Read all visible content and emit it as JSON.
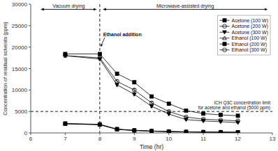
{
  "chart_data": {
    "type": "line",
    "title": "",
    "xlabel": "Time (hr)",
    "ylabel": "Concentration of residual solvents (ppm)",
    "xlim": [
      6,
      13
    ],
    "ylim": [
      0,
      30000
    ],
    "xticks": [
      6,
      7,
      8,
      9,
      10,
      11,
      12,
      13
    ],
    "yticks": [
      0,
      5000,
      10000,
      15000,
      20000,
      25000,
      30000
    ],
    "grid": false,
    "legend": "upper right",
    "color": "#000000",
    "x": [
      7,
      8,
      8.5,
      9,
      9.5,
      10,
      10.5,
      11,
      11.5,
      12
    ],
    "series": [
      {
        "name": "Acetone (100 W)",
        "marker": "square",
        "values": [
          18400,
          18400,
          13800,
          11800,
          8500,
          6800,
          5200,
          4500,
          4200,
          4000
        ],
        "yerr": [
          300,
          300,
          350,
          350,
          300,
          250,
          200,
          180,
          180,
          180
        ]
      },
      {
        "name": "Acetone (200 W)",
        "marker": "circle-open",
        "values": [
          18000,
          17500,
          12000,
          10000,
          7000,
          5000,
          3700,
          3200,
          3000,
          2800
        ],
        "yerr": [
          300,
          300,
          350,
          300,
          280,
          230,
          180,
          150,
          150,
          150
        ]
      },
      {
        "name": "Acetone (300 W)",
        "marker": "triangle-down",
        "values": [
          18000,
          17200,
          11200,
          9000,
          6200,
          4400,
          3100,
          2800,
          2600,
          2400
        ],
        "yerr": [
          300,
          300,
          320,
          280,
          260,
          220,
          170,
          140,
          140,
          140
        ]
      },
      {
        "name": "Ethanol (100 W)",
        "marker": "triangle-up-open",
        "values": [
          2100,
          1900,
          800,
          550,
          400,
          300,
          220,
          180,
          160,
          130
        ],
        "yerr": [
          100,
          100,
          70,
          55,
          45,
          35,
          28,
          22,
          18,
          15
        ]
      },
      {
        "name": "Ethanol (200 W)",
        "marker": "square",
        "values": [
          2200,
          2000,
          900,
          600,
          450,
          350,
          250,
          210,
          190,
          160
        ],
        "yerr": [
          100,
          100,
          75,
          58,
          48,
          38,
          30,
          24,
          20,
          17
        ]
      },
      {
        "name": "Ethanol (300 W)",
        "marker": "circle-open",
        "values": [
          2150,
          1950,
          850,
          580,
          420,
          320,
          240,
          190,
          165,
          135
        ],
        "yerr": [
          100,
          100,
          72,
          56,
          46,
          36,
          28,
          22,
          18,
          15
        ]
      }
    ],
    "reference_lines": [
      {
        "x": 8,
        "label": "Ethanol addition"
      },
      {
        "y": 5000,
        "label": "ICH Q3C concentration limit\nfor acetone and ethanol (5000 ppm)"
      }
    ],
    "annotations": [
      {
        "text": "Vacuum drying",
        "x": [
          6.3,
          7.9
        ],
        "y": 28800
      },
      {
        "text": "Microwave-assisted drying",
        "x": [
          8.1,
          12.85
        ],
        "y": 28800
      }
    ]
  }
}
